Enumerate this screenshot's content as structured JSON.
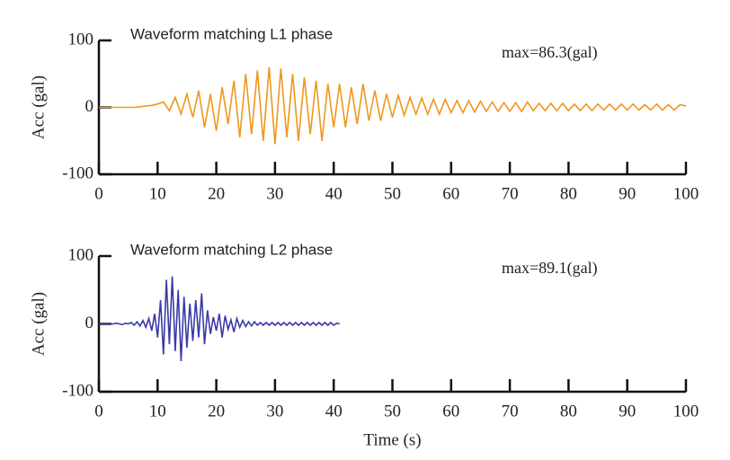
{
  "chart_data": [
    {
      "type": "line",
      "title": "Waveform matching L1 phase",
      "annotation": "max=86.3(gal)",
      "ylabel": "Acc (gal)",
      "xlim": [
        0,
        100
      ],
      "ylim": [
        -100,
        100
      ],
      "xticks": [
        0,
        10,
        20,
        30,
        40,
        50,
        60,
        70,
        80,
        90,
        100
      ],
      "yticks": [
        -100,
        0,
        100
      ],
      "x": [
        0,
        1,
        2,
        3,
        4,
        5,
        6,
        7,
        8,
        9,
        10,
        11,
        12,
        13,
        14,
        15,
        16,
        17,
        18,
        19,
        20,
        21,
        22,
        23,
        24,
        25,
        26,
        27,
        28,
        29,
        30,
        31,
        32,
        33,
        34,
        35,
        36,
        37,
        38,
        39,
        40,
        41,
        42,
        43,
        44,
        45,
        46,
        47,
        48,
        49,
        50,
        51,
        52,
        53,
        54,
        55,
        56,
        57,
        58,
        59,
        60,
        61,
        62,
        63,
        64,
        65,
        66,
        67,
        68,
        69,
        70,
        71,
        72,
        73,
        74,
        75,
        76,
        77,
        78,
        79,
        80,
        81,
        82,
        83,
        84,
        85,
        86,
        87,
        88,
        89,
        90,
        91,
        92,
        93,
        94,
        95,
        96,
        97,
        98,
        99,
        100
      ],
      "series": [
        {
          "color": "#f0961e",
          "values": [
            0,
            0,
            0,
            0,
            0,
            0,
            0,
            1,
            2,
            3,
            5,
            8,
            -5,
            15,
            -10,
            20,
            -15,
            25,
            -30,
            20,
            -35,
            30,
            -25,
            40,
            -45,
            50,
            -40,
            55,
            -50,
            60,
            -55,
            58,
            -45,
            50,
            -50,
            45,
            -40,
            40,
            -50,
            35,
            -30,
            35,
            -30,
            30,
            -25,
            35,
            -20,
            25,
            -20,
            20,
            -15,
            18,
            -12,
            15,
            -10,
            14,
            -10,
            12,
            -10,
            12,
            -8,
            10,
            -8,
            10,
            -7,
            9,
            -6,
            8,
            -6,
            7,
            -6,
            7,
            -6,
            8,
            -5,
            6,
            -5,
            6,
            -5,
            6,
            -5,
            5,
            -5,
            5,
            -5,
            5,
            -4,
            5,
            -4,
            5,
            -4,
            5,
            -4,
            4,
            -4,
            5,
            -4,
            4,
            -4,
            4,
            2
          ]
        }
      ]
    },
    {
      "type": "line",
      "title": "Waveform matching L2 phase",
      "annotation": "max=89.1(gal)",
      "ylabel": "Acc (gal)",
      "xlabel": "Time (s)",
      "xlim": [
        0,
        100
      ],
      "ylim": [
        -100,
        100
      ],
      "xticks": [
        0,
        10,
        20,
        30,
        40,
        50,
        60,
        70,
        80,
        90,
        100
      ],
      "yticks": [
        -100,
        0,
        100
      ],
      "x": [
        0,
        0.5,
        1,
        1.5,
        2,
        2.5,
        3,
        3.5,
        4,
        4.5,
        5,
        5.5,
        6,
        6.5,
        7,
        7.5,
        8,
        8.5,
        9,
        9.5,
        10,
        10.5,
        11,
        11.5,
        12,
        12.5,
        13,
        13.5,
        14,
        14.5,
        15,
        15.5,
        16,
        16.5,
        17,
        17.5,
        18,
        18.5,
        19,
        19.5,
        20,
        20.5,
        21,
        21.5,
        22,
        22.5,
        23,
        23.5,
        24,
        24.5,
        25,
        25.5,
        26,
        26.5,
        27,
        27.5,
        28,
        28.5,
        29,
        29.5,
        30,
        30.5,
        31,
        31.5,
        32,
        32.5,
        33,
        33.5,
        34,
        34.5,
        35,
        35.5,
        36,
        36.5,
        37,
        37.5,
        38,
        38.5,
        39,
        39.5,
        40,
        40.5,
        41
      ],
      "series": [
        {
          "color": "#3a3aa8",
          "values": [
            0,
            0,
            0,
            0,
            0,
            0,
            1,
            0,
            -1,
            1,
            0,
            2,
            -2,
            3,
            -3,
            5,
            -5,
            8,
            -10,
            15,
            -20,
            35,
            -45,
            65,
            -30,
            70,
            -40,
            50,
            -55,
            40,
            -35,
            30,
            -25,
            35,
            -20,
            45,
            -30,
            20,
            -15,
            10,
            -10,
            15,
            -20,
            12,
            -8,
            6,
            -12,
            8,
            -5,
            5,
            -4,
            3,
            -3,
            3,
            -2,
            2,
            -2,
            2,
            -2,
            2,
            -2,
            2,
            -2,
            2,
            -2,
            2,
            -2,
            2,
            -2,
            2,
            -2,
            2,
            -2,
            2,
            -2,
            2,
            -2,
            2,
            -2,
            2,
            -2,
            1,
            0
          ]
        }
      ]
    }
  ]
}
